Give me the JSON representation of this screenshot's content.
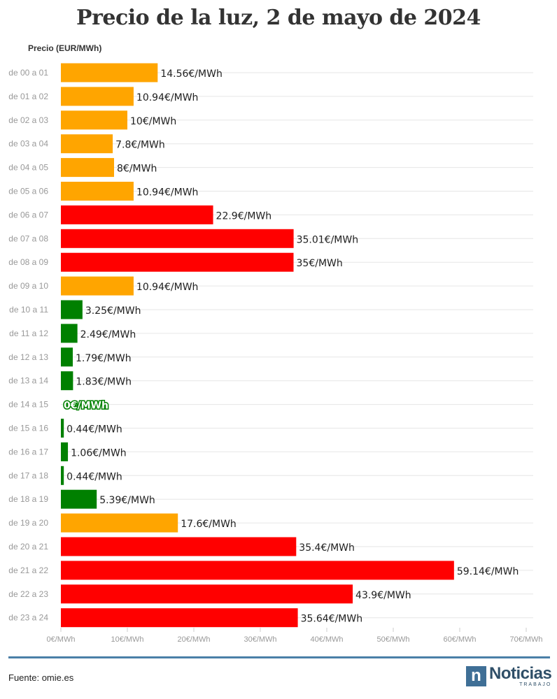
{
  "title": "Precio de la luz, 2 de mayo de 2024",
  "source": "Fuente: omie.es",
  "logo": {
    "mark": "n",
    "name": "Noticias",
    "sub": "TRABAJO"
  },
  "colors": {
    "high": "#ff0000",
    "mid": "#ffa500",
    "low": "#008000",
    "grid": "#e6e6e6",
    "axis_text": "#999999",
    "label_text": "#222222",
    "footer_rule": "#4a7fa7"
  },
  "chart_data": {
    "type": "bar",
    "orientation": "horizontal",
    "title": "Precio de la luz, 2 de mayo de 2024",
    "ylabel": "Precio (EUR/MWh)",
    "xlim": [
      0,
      70
    ],
    "xticks": [
      0,
      10,
      20,
      30,
      40,
      50,
      60,
      70
    ],
    "xtick_labels": [
      "0€/MWh",
      "10€/MWh",
      "20€/MWh",
      "30€/MWh",
      "40€/MWh",
      "50€/MWh",
      "60€/MWh",
      "70€/MWh"
    ],
    "grid": true,
    "categories": [
      "de 00 a 01",
      "de 01 a 02",
      "de 02 a 03",
      "de 03 a 04",
      "de 04 a 05",
      "de 05 a 06",
      "de 06 a 07",
      "de 07 a 08",
      "de 08 a 09",
      "de 09 a 10",
      "de 10 a 11",
      "de 11 a 12",
      "de 12 a 13",
      "de 13 a 14",
      "de 14 a 15",
      "de 15 a 16",
      "de 16 a 17",
      "de 17 a 18",
      "de 18 a 19",
      "de 19 a 20",
      "de 20 a 21",
      "de 21 a 22",
      "de 22 a 23",
      "de 23 a 24"
    ],
    "values": [
      14.56,
      10.94,
      10,
      7.8,
      8,
      10.94,
      22.9,
      35.01,
      35,
      10.94,
      3.25,
      2.49,
      1.79,
      1.83,
      0,
      0.44,
      1.06,
      0.44,
      5.39,
      17.6,
      35.4,
      59.14,
      43.9,
      35.64
    ],
    "value_labels": [
      "14.56€/MWh",
      "10.94€/MWh",
      "10€/MWh",
      "7.8€/MWh",
      "8€/MWh",
      "10.94€/MWh",
      "22.9€/MWh",
      "35.01€/MWh",
      "35€/MWh",
      "10.94€/MWh",
      "3.25€/MWh",
      "2.49€/MWh",
      "1.79€/MWh",
      "1.83€/MWh",
      "0€/MWh",
      "0.44€/MWh",
      "1.06€/MWh",
      "0.44€/MWh",
      "5.39€/MWh",
      "17.6€/MWh",
      "35.4€/MWh",
      "59.14€/MWh",
      "43.9€/MWh",
      "35.64€/MWh"
    ],
    "bar_colors": [
      "mid",
      "mid",
      "mid",
      "mid",
      "mid",
      "mid",
      "high",
      "high",
      "high",
      "mid",
      "low",
      "low",
      "low",
      "low",
      "low",
      "low",
      "low",
      "low",
      "low",
      "mid",
      "high",
      "high",
      "high",
      "high"
    ]
  }
}
